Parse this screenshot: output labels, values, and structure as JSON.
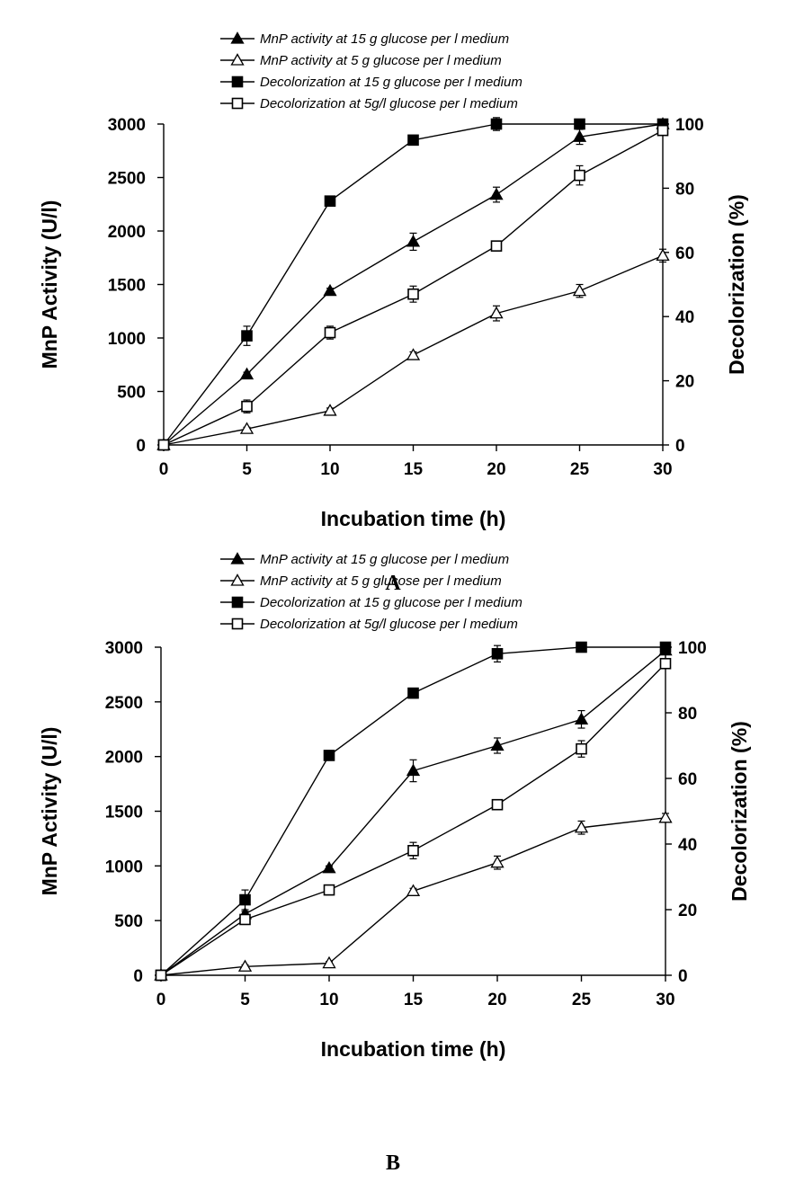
{
  "chart_data": [
    {
      "type": "line",
      "panel_label": "A",
      "xlabel": "Incubation time (h)",
      "ylabel": "MnP Activity (U/l)",
      "y2label": "Decolorization (%)",
      "x": [
        0,
        5,
        10,
        15,
        20,
        25,
        30
      ],
      "xlim": [
        0,
        30
      ],
      "ylim": [
        0,
        3000
      ],
      "y2lim": [
        0,
        100
      ],
      "xticks": [
        "0",
        "5",
        "10",
        "15",
        "20",
        "25",
        "30"
      ],
      "yticks": [
        "0",
        "500",
        "1000",
        "1500",
        "2000",
        "2500",
        "3000"
      ],
      "y2ticks": [
        "0",
        "20",
        "40",
        "60",
        "80",
        "100"
      ],
      "grid": false,
      "legend_position": "top",
      "series": [
        {
          "name": "MnP activity at 15 g glucose per l medium",
          "axis": "left",
          "marker": "filled-triangle",
          "values": [
            0,
            660,
            1440,
            1900,
            2340,
            2880,
            3000
          ],
          "errors": [
            0,
            20,
            25,
            80,
            70,
            70,
            30
          ]
        },
        {
          "name": "MnP activity at 5 g glucose per l medium",
          "axis": "left",
          "marker": "open-triangle",
          "values": [
            0,
            150,
            320,
            840,
            1230,
            1440,
            1770
          ],
          "errors": [
            0,
            15,
            25,
            30,
            70,
            60,
            60
          ]
        },
        {
          "name": "Decolorization at 15 g glucose per l medium",
          "axis": "right",
          "marker": "filled-square",
          "values": [
            0,
            34,
            76,
            95,
            100,
            100,
            100
          ],
          "errors": [
            0,
            3,
            1.5,
            1,
            2,
            0,
            0
          ]
        },
        {
          "name": "Decolorization at 5g/l glucose per l medium",
          "axis": "right",
          "marker": "open-square",
          "values": [
            0,
            12,
            35,
            47,
            62,
            84,
            98
          ],
          "errors": [
            0,
            2,
            2,
            2.5,
            1.5,
            3,
            1
          ]
        }
      ]
    },
    {
      "type": "line",
      "panel_label": "B",
      "xlabel": "Incubation time (h)",
      "ylabel": "MnP Activity (U/l)",
      "y2label": "Decolorization (%)",
      "x": [
        0,
        5,
        10,
        15,
        20,
        25,
        30
      ],
      "xlim": [
        0,
        30
      ],
      "ylim": [
        0,
        3000
      ],
      "y2lim": [
        0,
        100
      ],
      "xticks": [
        "0",
        "5",
        "10",
        "15",
        "20",
        "25",
        "30"
      ],
      "yticks": [
        "0",
        "500",
        "1000",
        "1500",
        "2000",
        "2500",
        "3000"
      ],
      "y2ticks": [
        "0",
        "20",
        "40",
        "60",
        "80",
        "100"
      ],
      "grid": false,
      "legend_position": "top",
      "series": [
        {
          "name": "MnP activity at 15 g glucose per l medium",
          "axis": "left",
          "marker": "filled-triangle",
          "values": [
            0,
            560,
            980,
            1870,
            2100,
            2340,
            2970
          ],
          "errors": [
            0,
            25,
            20,
            100,
            70,
            80,
            30
          ]
        },
        {
          "name": "MnP activity at 5 g glucose per l medium",
          "axis": "left",
          "marker": "open-triangle",
          "values": [
            0,
            80,
            110,
            770,
            1030,
            1350,
            1440
          ],
          "errors": [
            0,
            15,
            15,
            25,
            60,
            60,
            40
          ]
        },
        {
          "name": "Decolorization at 15 g glucose per l medium",
          "axis": "right",
          "marker": "filled-square",
          "values": [
            0,
            23,
            67,
            86,
            98,
            100,
            100
          ],
          "errors": [
            0,
            3,
            1.5,
            1.5,
            2.5,
            0,
            0
          ]
        },
        {
          "name": "Decolorization at 5g/l glucose per l medium",
          "axis": "right",
          "marker": "open-square",
          "values": [
            0,
            17,
            26,
            38,
            52,
            69,
            95
          ],
          "errors": [
            0,
            1.5,
            1.5,
            2.5,
            1,
            2.5,
            1.5
          ]
        }
      ]
    }
  ]
}
